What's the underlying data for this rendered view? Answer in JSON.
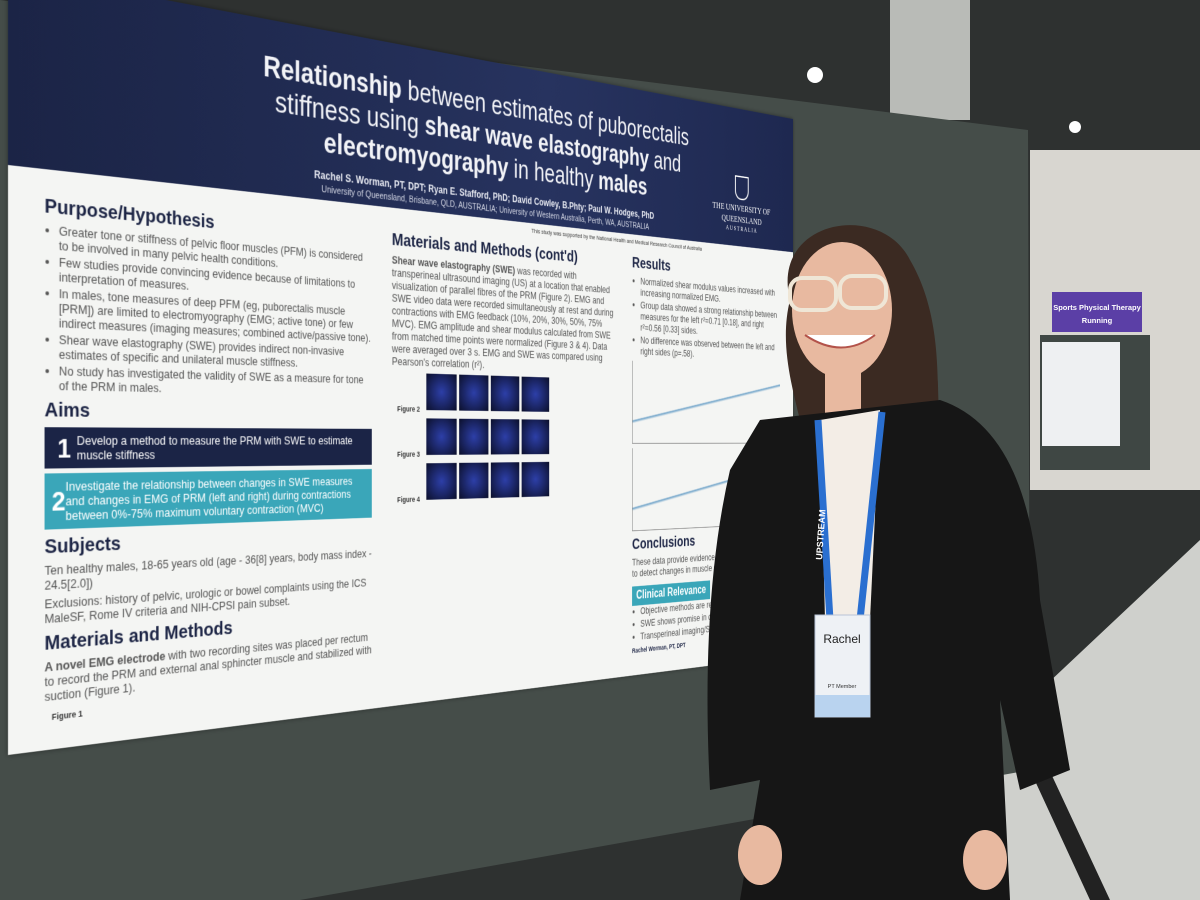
{
  "poster": {
    "title_parts": [
      "Relationship",
      " between estimates of puborectalis stiffness using ",
      "shear wave elastography",
      " and ",
      "electromyography",
      " in healthy ",
      "males"
    ],
    "authors": "Rachel S. Worman, PT, DPT; Ryan E. Stafford, PhD; David Cowley, B.Phty; Paul W. Hodges, PhD",
    "affiliation": "University of Queensland, Brisbane, QLD, AUSTRALIA; University of Western Australia, Perth, WA, AUSTRALIA",
    "funding": "This study was supported by the National Health and Medical Research Council of Australia",
    "logo": "The University of Queensland",
    "logo_sub": "Australia",
    "purpose": {
      "heading": "Purpose/Hypothesis",
      "items": [
        "Greater tone or stiffness of pelvic floor muscles (PFM) is considered to be involved in many pelvic health conditions.",
        "Few studies provide convincing evidence because of limitations to interpretation of measures.",
        "In males, tone measures of deep PFM (eg, puborectalis muscle [PRM]) are limited to electromyography (EMG; active tone) or few indirect measures (imaging measures; combined active/passive tone).",
        "Shear wave elastography (SWE) provides indirect non-invasive estimates of specific and unilateral muscle stiffness.",
        "No study has investigated the validity of SWE as a measure for tone of the PRM in males."
      ]
    },
    "aims": {
      "heading": "Aims",
      "items": [
        {
          "number": "1",
          "text": "Develop a method to measure the PRM with SWE to estimate muscle stiffness"
        },
        {
          "number": "2",
          "text": "Investigate the relationship between changes in SWE measures and changes in EMG of PRM (left and right) during contractions between 0%-75% maximum voluntary contraction (MVC)"
        }
      ]
    },
    "subjects": {
      "heading": "Subjects",
      "items": [
        "Ten healthy males, 18-65 years old (age - 36[8] years, body mass index - 24.5[2.0])",
        "Exclusions: history of pelvic, urologic or bowel complaints using the ICS MaleSF, Rome IV criteria and NIH-CPSI pain subset."
      ]
    },
    "methods": {
      "heading": "Materials and Methods",
      "lead": "A novel EMG electrode",
      "text": " with two recording sites was placed per rectum to record the PRM and external anal sphincter muscle and stabilized with suction (Figure 1).",
      "figure": "Figure 1"
    },
    "methods_cont": {
      "heading": "Materials and Methods (cont'd)",
      "lead": "Shear wave elastography (SWE)",
      "text": " was recorded with transperineal ultrasound imaging (US) at a location that enabled visualization of parallel fibres of the PRM (Figure 2). EMG and SWE video data were recorded simultaneously at rest and during contractions with EMG feedback (10%, 20%, 30%, 50%, 75% MVC). EMG amplitude and shear modulus calculated from SWE from matched time points were normalized (Figure 3 & 4). Data were averaged over 3 s. EMG and SWE was compared using Pearson's correlation (r²).",
      "figures": [
        "Figure 2",
        "Figure 3",
        "Figure 4"
      ]
    },
    "results": {
      "heading": "Results",
      "items": [
        "Normalized shear modulus values increased with increasing normalized EMG.",
        "Group data showed a strong relationship between measures for the left r²=0.71 [0.18], and right r²=0.56 [0.33] sides.",
        "No difference was observed between the left and right sides (p=.58)."
      ]
    },
    "conclusions": {
      "heading": "Conclusions",
      "text": "These data provide evidence of face-validity of SWE to detect changes in muscle stiffness with changes"
    },
    "clinical": {
      "heading": "Clinical Relevance",
      "items": [
        "Objective methods are required to",
        "SWE shows promise in quantifying",
        "Transperineal imaging/SWE is not"
      ]
    },
    "footer": "Rachel Worman, PT, DPT"
  },
  "badge": {
    "name": "Rachel",
    "member": "PT Member"
  },
  "lanyard": "UPSTREAM",
  "sign": {
    "title": "Sports Physical Therapy",
    "subtitle": "Running"
  }
}
